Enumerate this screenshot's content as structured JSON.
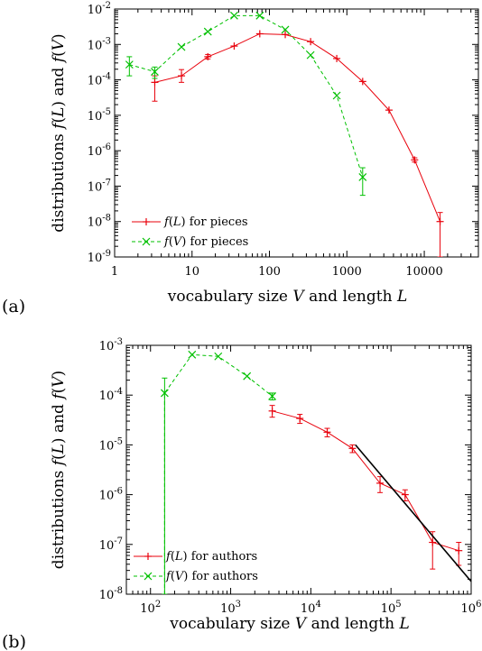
{
  "chart_data": [
    {
      "type": "line",
      "panel_label": "(a)",
      "xlabel": "vocabulary size V and length L",
      "ylabel": "distributions f(L) and f(V)",
      "x_scale": "log",
      "y_scale": "log",
      "xlim": [
        1,
        50000
      ],
      "ylim": [
        1e-09,
        0.01
      ],
      "x_ticks": [
        1,
        10,
        100,
        1000,
        10000
      ],
      "x_tick_labels": [
        "1",
        "10",
        "100",
        "1000",
        "10000"
      ],
      "y_ticks": [
        1e-09,
        1e-08,
        1e-07,
        1e-06,
        1e-05,
        0.0001,
        0.001,
        0.01
      ],
      "y_tick_labels": [
        [
          "10",
          "-9"
        ],
        [
          "10",
          "-8"
        ],
        [
          "10",
          "-7"
        ],
        [
          "10",
          "-6"
        ],
        [
          "10",
          "-5"
        ],
        [
          "10",
          "-4"
        ],
        [
          "10",
          "-3"
        ],
        [
          "10",
          "-2"
        ]
      ],
      "legend_position": "bottom-left",
      "series": [
        {
          "name": "f(L) for pieces",
          "legend_label": "for pieces",
          "legend_func": "f(L)",
          "color": "#e8000b",
          "marker": "plus",
          "dashed": false,
          "points": [
            {
              "x": 3.3,
              "y": 8.5e-05,
              "lo": 2.5e-05,
              "hi": 0.00013
            },
            {
              "x": 7.3,
              "y": 0.00013,
              "lo": 8.5e-05,
              "hi": 0.000195
            },
            {
              "x": 16,
              "y": 0.00045,
              "lo": 0.00039,
              "hi": 0.00052
            },
            {
              "x": 35,
              "y": 0.0009
            },
            {
              "x": 75,
              "y": 0.002
            },
            {
              "x": 160,
              "y": 0.0019
            },
            {
              "x": 340,
              "y": 0.0012
            },
            {
              "x": 740,
              "y": 0.0004
            },
            {
              "x": 1600,
              "y": 9e-05
            },
            {
              "x": 3500,
              "y": 1.4e-05
            },
            {
              "x": 7500,
              "y": 5.5e-07,
              "lo": 4.8e-07,
              "hi": 6.3e-07
            },
            {
              "x": 16000,
              "y": 1e-08,
              "lo": 1e-09,
              "hi": 1.8e-08
            }
          ]
        },
        {
          "name": "f(V) for pieces",
          "legend_label": "for pieces",
          "legend_func": "f(V)",
          "color": "#00c000",
          "marker": "cross",
          "dashed": true,
          "points": [
            {
              "x": 1.55,
              "y": 0.00027,
              "lo": 0.00013,
              "hi": 0.00045
            },
            {
              "x": 3.3,
              "y": 0.00017,
              "lo": 0.00011,
              "hi": 0.00023
            },
            {
              "x": 7.3,
              "y": 0.00085
            },
            {
              "x": 16,
              "y": 0.0023
            },
            {
              "x": 35,
              "y": 0.0065
            },
            {
              "x": 75,
              "y": 0.0065
            },
            {
              "x": 160,
              "y": 0.0026
            },
            {
              "x": 340,
              "y": 0.0005
            },
            {
              "x": 740,
              "y": 3.6e-05
            },
            {
              "x": 1600,
              "y": 1.8e-07,
              "lo": 5.5e-08,
              "hi": 3.3e-07
            }
          ]
        }
      ]
    },
    {
      "type": "line",
      "panel_label": "(b)",
      "xlabel": "vocabulary size V and length L",
      "ylabel": "distributions f(L) and f(V)",
      "x_scale": "log",
      "y_scale": "log",
      "xlim": [
        50,
        1000000
      ],
      "ylim": [
        1e-08,
        0.001
      ],
      "x_ticks": [
        100,
        1000,
        10000,
        100000,
        1000000
      ],
      "x_tick_labels": [
        [
          "10",
          "2"
        ],
        [
          "10",
          "3"
        ],
        [
          "10",
          "4"
        ],
        [
          "10",
          "5"
        ],
        [
          "10",
          "6"
        ]
      ],
      "y_ticks": [
        1e-08,
        1e-07,
        1e-06,
        1e-05,
        0.0001,
        0.001
      ],
      "y_tick_labels": [
        [
          "10",
          "-8"
        ],
        [
          "10",
          "-7"
        ],
        [
          "10",
          "-6"
        ],
        [
          "10",
          "-5"
        ],
        [
          "10",
          "-4"
        ],
        [
          "10",
          "-3"
        ]
      ],
      "legend_position": "bottom-left",
      "series": [
        {
          "name": "f(L) for authors",
          "legend_label": "for authors",
          "legend_func": "f(L)",
          "color": "#e8000b",
          "marker": "plus",
          "dashed": false,
          "points": [
            {
              "x": 3300,
              "y": 4.8e-05,
              "lo": 3.6e-05,
              "hi": 6.2e-05
            },
            {
              "x": 7300,
              "y": 3.4e-05,
              "lo": 2.7e-05,
              "hi": 4.1e-05
            },
            {
              "x": 16000,
              "y": 1.8e-05,
              "lo": 1.45e-05,
              "hi": 2.15e-05
            },
            {
              "x": 33000,
              "y": 8.5e-06,
              "lo": 7e-06,
              "hi": 1e-05
            },
            {
              "x": 73000,
              "y": 1.7e-06,
              "lo": 1.1e-06,
              "hi": 2.3e-06
            },
            {
              "x": 150000,
              "y": 1e-06,
              "lo": 7.5e-07,
              "hi": 1.25e-06
            },
            {
              "x": 330000,
              "y": 1.1e-07,
              "lo": 3.2e-08,
              "hi": 1.8e-07
            },
            {
              "x": 700000,
              "y": 7.5e-08,
              "lo": 3.8e-08,
              "hi": 1.1e-07
            }
          ]
        },
        {
          "name": "f(V) for authors",
          "legend_label": "for authors",
          "legend_func": "f(V)",
          "color": "#00c000",
          "marker": "cross",
          "dashed": true,
          "lead_in": {
            "x": 150,
            "y": 1e-08
          },
          "points": [
            {
              "x": 150,
              "y": 0.00011,
              "lo": 1e-08,
              "hi": 0.00022
            },
            {
              "x": 330,
              "y": 0.00065
            },
            {
              "x": 700,
              "y": 0.0006
            },
            {
              "x": 1600,
              "y": 0.00024
            },
            {
              "x": 3300,
              "y": 9.5e-05,
              "lo": 8e-05,
              "hi": 0.00011
            }
          ]
        }
      ],
      "fit_line": {
        "color": "#000000",
        "x": [
          36000,
          1000000
        ],
        "y": [
          1e-05,
          1.8e-08
        ]
      }
    }
  ]
}
